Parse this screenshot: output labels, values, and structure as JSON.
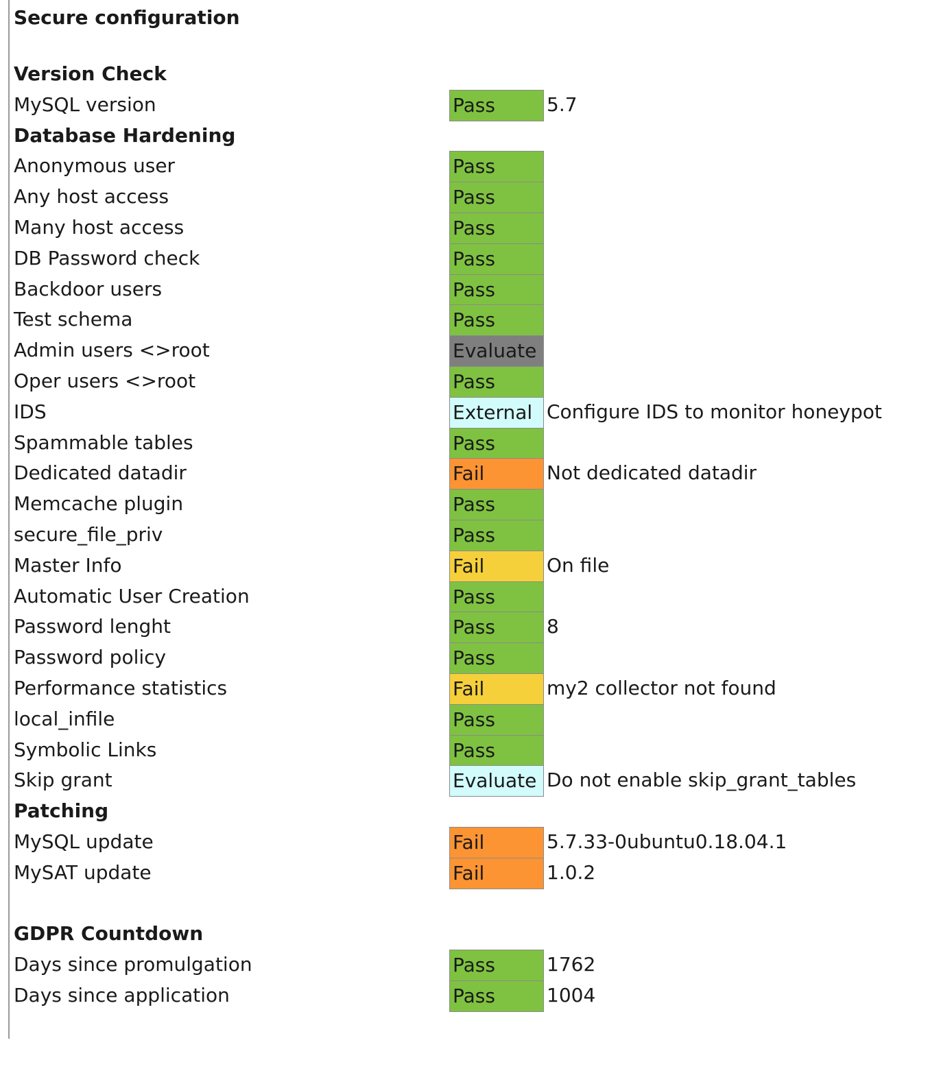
{
  "title": "Secure configuration",
  "status_colors": {
    "Pass": "#7fc241",
    "Evaluate-gray": "#7f7f7f",
    "External": "#d2fbfb",
    "Evaluate-cyan": "#d2fbfb",
    "Fail-orange": "#fd9433",
    "Fail-yellow": "#f6d03a"
  },
  "rows": [
    {
      "type": "section",
      "label": "Version Check"
    },
    {
      "type": "item",
      "label": "MySQL version",
      "status": "Pass",
      "color": "#7fc241",
      "note": "5.7"
    },
    {
      "type": "section",
      "label": "Database Hardening"
    },
    {
      "type": "item",
      "label": "Anonymous user",
      "status": "Pass",
      "color": "#7fc241",
      "note": ""
    },
    {
      "type": "item",
      "label": "Any host access",
      "status": "Pass",
      "color": "#7fc241",
      "note": ""
    },
    {
      "type": "item",
      "label": "Many host access",
      "status": "Pass",
      "color": "#7fc241",
      "note": ""
    },
    {
      "type": "item",
      "label": "DB Password check",
      "status": "Pass",
      "color": "#7fc241",
      "note": ""
    },
    {
      "type": "item",
      "label": "Backdoor users",
      "status": "Pass",
      "color": "#7fc241",
      "note": ""
    },
    {
      "type": "item",
      "label": "Test schema",
      "status": "Pass",
      "color": "#7fc241",
      "note": ""
    },
    {
      "type": "item",
      "label": "Admin users <>root",
      "status": "Evaluate",
      "color": "#7f7f7f",
      "note": ""
    },
    {
      "type": "item",
      "label": "Oper users <>root",
      "status": "Pass",
      "color": "#7fc241",
      "note": ""
    },
    {
      "type": "item",
      "label": "IDS",
      "status": "External",
      "color": "#d2fbfb",
      "note": "Configure IDS to monitor honeypot"
    },
    {
      "type": "item",
      "label": "Spammable tables",
      "status": "Pass",
      "color": "#7fc241",
      "note": ""
    },
    {
      "type": "item",
      "label": "Dedicated datadir",
      "status": "Fail",
      "color": "#fd9433",
      "note": "Not dedicated datadir"
    },
    {
      "type": "item",
      "label": "Memcache plugin",
      "status": "Pass",
      "color": "#7fc241",
      "note": ""
    },
    {
      "type": "item",
      "label": "secure_file_priv",
      "status": "Pass",
      "color": "#7fc241",
      "note": ""
    },
    {
      "type": "item",
      "label": "Master Info",
      "status": "Fail",
      "color": "#f6d03a",
      "note": "On file"
    },
    {
      "type": "item",
      "label": "Automatic User Creation",
      "status": "Pass",
      "color": "#7fc241",
      "note": ""
    },
    {
      "type": "item",
      "label": "Password lenght",
      "status": "Pass",
      "color": "#7fc241",
      "note": "8"
    },
    {
      "type": "item",
      "label": "Password policy",
      "status": "Pass",
      "color": "#7fc241",
      "note": ""
    },
    {
      "type": "item",
      "label": "Performance statistics",
      "status": "Fail",
      "color": "#f6d03a",
      "note": "my2 collector not found"
    },
    {
      "type": "item",
      "label": "local_infile",
      "status": "Pass",
      "color": "#7fc241",
      "note": ""
    },
    {
      "type": "item",
      "label": "Symbolic Links",
      "status": "Pass",
      "color": "#7fc241",
      "note": ""
    },
    {
      "type": "item",
      "label": "Skip grant",
      "status": "Evaluate",
      "color": "#d2fbfb",
      "note": "Do not enable skip_grant_tables"
    },
    {
      "type": "section",
      "label": "Patching"
    },
    {
      "type": "item",
      "label": "MySQL update",
      "status": "Fail",
      "color": "#fd9433",
      "note": "5.7.33-0ubuntu0.18.04.1"
    },
    {
      "type": "item",
      "label": "MySAT update",
      "status": "Fail",
      "color": "#fd9433",
      "note": "1.0.2"
    },
    {
      "type": "blank",
      "label": ""
    },
    {
      "type": "section",
      "label": "GDPR Countdown"
    },
    {
      "type": "item",
      "label": "Days since promulgation",
      "status": "Pass",
      "color": "#7fc241",
      "note": "1762"
    },
    {
      "type": "item",
      "label": "Days since application",
      "status": "Pass",
      "color": "#7fc241",
      "note": "1004"
    }
  ]
}
